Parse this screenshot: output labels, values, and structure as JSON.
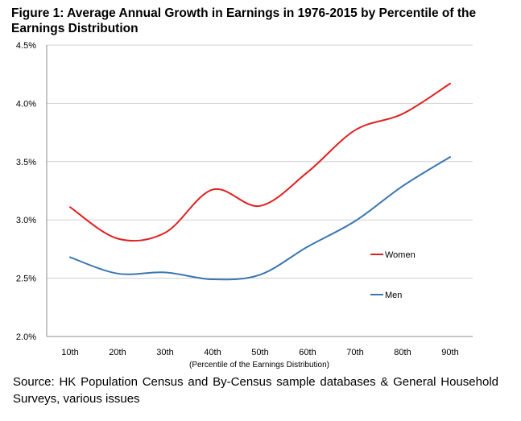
{
  "figure": {
    "title": "Figure 1: Average Annual Growth in Earnings in 1976-2015 by Percentile of the Earnings Distribution",
    "source": "Source: HK Population Census and By-Census sample databases & General Household Surveys, various issues"
  },
  "chart_data": {
    "type": "line",
    "title": "Figure 1: Average Annual Growth in Earnings in 1976-2015 by Percentile of the Earnings Distribution",
    "xlabel": "(Percentile of the Earnings Distribution)",
    "ylabel": "",
    "categories": [
      "10th",
      "20th",
      "30th",
      "40th",
      "50th",
      "60th",
      "70th",
      "80th",
      "90th"
    ],
    "yticks": [
      "2.0%",
      "2.5%",
      "3.0%",
      "3.5%",
      "4.0%",
      "4.5%"
    ],
    "ylim": [
      2.0,
      4.5
    ],
    "grid": true,
    "legend_position": "right",
    "series": [
      {
        "name": "Women",
        "color": "#e02020",
        "values": [
          3.11,
          2.84,
          2.89,
          3.26,
          3.12,
          3.41,
          3.77,
          3.91,
          4.17
        ]
      },
      {
        "name": "Men",
        "color": "#3a76b0",
        "values": [
          2.68,
          2.54,
          2.55,
          2.49,
          2.53,
          2.77,
          2.99,
          3.29,
          3.54
        ]
      }
    ]
  }
}
